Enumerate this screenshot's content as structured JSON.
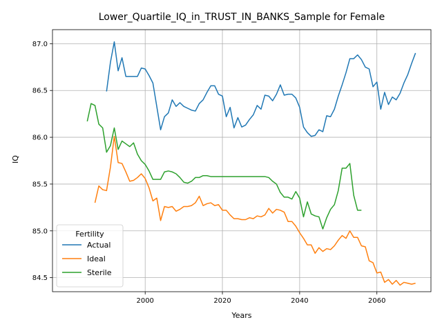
{
  "chart_data": {
    "type": "line",
    "title": "Lower_Quartile_IQ_in_TRUST_IN_BANKS_Sample for Female",
    "xlabel": "Years",
    "ylabel": "IQ",
    "xlim": [
      1976,
      2074
    ],
    "ylim": [
      84.35,
      87.15
    ],
    "xticks": [
      2000,
      2020,
      2040,
      2060
    ],
    "yticks": [
      84.5,
      85.0,
      85.5,
      86.0,
      86.5,
      87.0
    ],
    "xtick_labels": [
      "2000",
      "2020",
      "2040",
      "2060"
    ],
    "ytick_labels": [
      "84.5",
      "85.0",
      "85.5",
      "86.0",
      "86.5",
      "87.0"
    ],
    "grid": true,
    "legend": {
      "title": "Fertility",
      "placement": "lower-left"
    },
    "series": [
      {
        "name": "Actual",
        "color": "#1f77b4",
        "x": [
          1990,
          1991,
          1992,
          1993,
          1994,
          1995,
          1996,
          1997,
          1998,
          1999,
          2000,
          2001,
          2002,
          2003,
          2004,
          2005,
          2006,
          2007,
          2008,
          2009,
          2010,
          2011,
          2012,
          2013,
          2014,
          2015,
          2016,
          2017,
          2018,
          2019,
          2020,
          2021,
          2022,
          2023,
          2024,
          2025,
          2026,
          2027,
          2028,
          2029,
          2030,
          2031,
          2032,
          2033,
          2034,
          2035,
          2036,
          2037,
          2038,
          2039,
          2040,
          2041,
          2042,
          2043,
          2044,
          2045,
          2046,
          2047,
          2048,
          2049,
          2050,
          2051,
          2052,
          2053,
          2054,
          2055,
          2056,
          2057,
          2058,
          2059,
          2060,
          2061,
          2062,
          2063,
          2064,
          2065,
          2066,
          2067,
          2068,
          2069,
          2070
        ],
        "y": [
          86.49,
          86.8,
          87.02,
          86.71,
          86.85,
          86.65,
          86.65,
          86.65,
          86.65,
          86.74,
          86.73,
          86.66,
          86.58,
          86.33,
          86.08,
          86.22,
          86.26,
          86.4,
          86.33,
          86.37,
          86.33,
          86.31,
          86.29,
          86.28,
          86.36,
          86.4,
          86.48,
          86.55,
          86.55,
          86.46,
          86.44,
          86.22,
          86.32,
          86.1,
          86.21,
          86.11,
          86.13,
          86.19,
          86.24,
          86.34,
          86.3,
          86.45,
          86.44,
          86.39,
          86.46,
          86.56,
          86.45,
          86.46,
          86.46,
          86.42,
          86.32,
          86.11,
          86.05,
          86.01,
          86.02,
          86.08,
          86.06,
          86.23,
          86.22,
          86.3,
          86.44,
          86.56,
          86.69,
          86.84,
          86.84,
          86.88,
          86.83,
          86.75,
          86.73,
          86.54,
          86.59,
          86.3,
          86.48,
          86.35,
          86.43,
          86.4,
          86.47,
          86.58,
          86.67,
          86.79,
          86.9
        ]
      },
      {
        "name": "Ideal",
        "color": "#ff7f0e",
        "x": [
          1987,
          1988,
          1989,
          1990,
          1991,
          1992,
          1993,
          1994,
          1995,
          1996,
          1997,
          1998,
          1999,
          2000,
          2001,
          2002,
          2003,
          2004,
          2005,
          2006,
          2007,
          2008,
          2009,
          2010,
          2011,
          2012,
          2013,
          2014,
          2015,
          2016,
          2017,
          2018,
          2019,
          2020,
          2021,
          2022,
          2023,
          2024,
          2025,
          2026,
          2027,
          2028,
          2029,
          2030,
          2031,
          2032,
          2033,
          2034,
          2035,
          2036,
          2037,
          2038,
          2039,
          2040,
          2041,
          2042,
          2043,
          2044,
          2045,
          2046,
          2047,
          2048,
          2049,
          2050,
          2051,
          2052,
          2053,
          2054,
          2055,
          2056,
          2057,
          2058,
          2059,
          2060,
          2061,
          2062,
          2063,
          2064,
          2065,
          2066,
          2067,
          2068,
          2069,
          2070
        ],
        "y": [
          85.3,
          85.48,
          85.44,
          85.43,
          85.68,
          86.01,
          85.73,
          85.72,
          85.63,
          85.53,
          85.54,
          85.57,
          85.61,
          85.56,
          85.46,
          85.32,
          85.35,
          85.11,
          85.26,
          85.25,
          85.26,
          85.21,
          85.23,
          85.26,
          85.26,
          85.27,
          85.3,
          85.37,
          85.27,
          85.29,
          85.3,
          85.27,
          85.28,
          85.22,
          85.22,
          85.17,
          85.13,
          85.13,
          85.12,
          85.12,
          85.14,
          85.13,
          85.16,
          85.15,
          85.17,
          85.24,
          85.19,
          85.23,
          85.22,
          85.2,
          85.1,
          85.1,
          85.05,
          84.98,
          84.92,
          84.85,
          84.85,
          84.76,
          84.82,
          84.78,
          84.81,
          84.8,
          84.84,
          84.9,
          84.95,
          84.92,
          85.0,
          84.93,
          84.93,
          84.84,
          84.83,
          84.68,
          84.66,
          84.55,
          84.56,
          84.45,
          84.48,
          84.43,
          84.47,
          84.42,
          84.45,
          84.44,
          84.43,
          84.44
        ]
      },
      {
        "name": "Sterile",
        "color": "#2ca02c",
        "x": [
          1985,
          1986,
          1987,
          1988,
          1989,
          1990,
          1991,
          1992,
          1993,
          1994,
          1995,
          1996,
          1997,
          1998,
          1999,
          2000,
          2001,
          2002,
          2003,
          2004,
          2005,
          2006,
          2007,
          2008,
          2009,
          2010,
          2011,
          2012,
          2013,
          2014,
          2015,
          2016,
          2017,
          2018,
          2019,
          2020,
          2021,
          2022,
          2023,
          2024,
          2025,
          2026,
          2027,
          2028,
          2029,
          2030,
          2031,
          2032,
          2033,
          2034,
          2035,
          2036,
          2037,
          2038,
          2039,
          2040,
          2041,
          2042,
          2043,
          2044,
          2045,
          2046,
          2047,
          2048,
          2049,
          2050,
          2051,
          2052,
          2053,
          2054,
          2055,
          2056
        ],
        "y": [
          86.17,
          86.36,
          86.34,
          86.14,
          86.1,
          85.84,
          85.91,
          86.1,
          85.87,
          85.96,
          85.93,
          85.9,
          85.94,
          85.82,
          85.75,
          85.71,
          85.64,
          85.55,
          85.55,
          85.55,
          85.63,
          85.64,
          85.63,
          85.61,
          85.57,
          85.52,
          85.51,
          85.53,
          85.57,
          85.57,
          85.59,
          85.59,
          85.58,
          85.58,
          85.58,
          85.58,
          85.58,
          85.58,
          85.58,
          85.58,
          85.58,
          85.58,
          85.58,
          85.58,
          85.58,
          85.58,
          85.58,
          85.57,
          85.53,
          85.5,
          85.41,
          85.36,
          85.36,
          85.34,
          85.42,
          85.35,
          85.15,
          85.31,
          85.18,
          85.16,
          85.15,
          85.02,
          85.14,
          85.23,
          85.28,
          85.43,
          85.67,
          85.67,
          85.72,
          85.38,
          85.22,
          85.22
        ]
      }
    ]
  }
}
